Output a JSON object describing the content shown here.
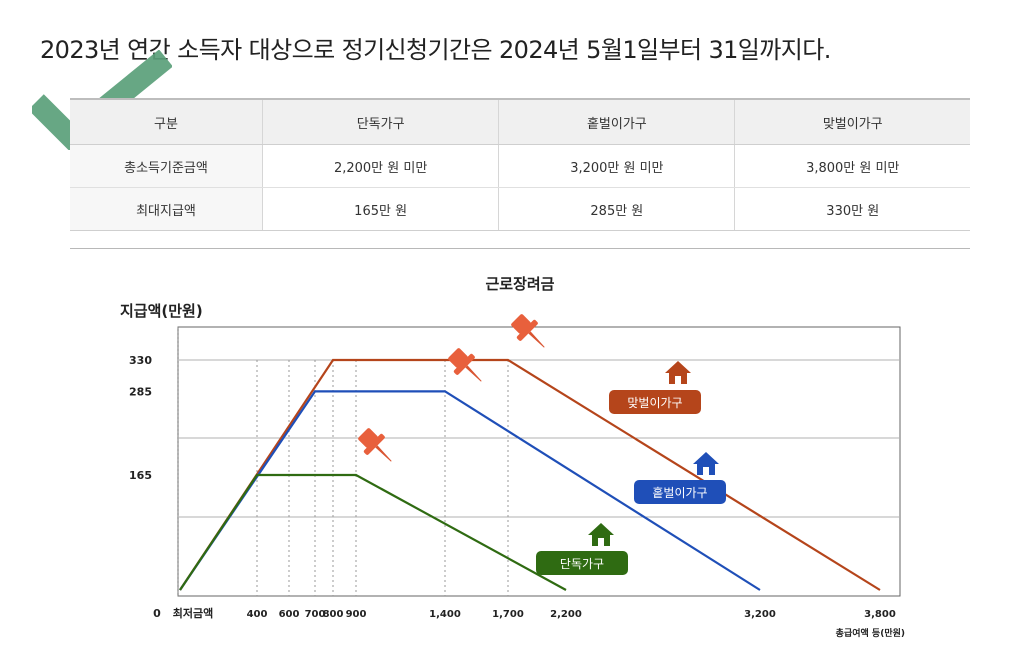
{
  "headline": "2023년 연간 소득자 대상으로 정기신청기간은 2024년 5월1일부터 31일까지다.",
  "table": {
    "headers": [
      "구분",
      "단독가구",
      "홑벌이가구",
      "맞벌이가구"
    ],
    "rows": [
      [
        "총소득기준금액",
        "2,200만 원 미만",
        "3,200만 원 미만",
        "3,800만 원 미만"
      ],
      [
        "최대지급액",
        "165만 원",
        "285만 원",
        "330만 원"
      ]
    ]
  },
  "chart_data": {
    "type": "line",
    "title": "근로장려금",
    "ylabel": "지급액(만원)",
    "xlabel": "총급여액 등(만원)",
    "x_origin_label": "0",
    "x_min_label": "최저금액",
    "x_ticks": [
      "400",
      "600",
      "700",
      "800",
      "900",
      "1,400",
      "1,700",
      "2,200",
      "3,200",
      "3,800"
    ],
    "y_ticks": [
      "330",
      "285",
      "165"
    ],
    "ylim": [
      0,
      380
    ],
    "grid": true,
    "series": [
      {
        "name": "맞벌이가구",
        "color": "#b5451b",
        "x": [
          0,
          800,
          1700,
          3800
        ],
        "y": [
          0,
          330,
          330,
          0
        ]
      },
      {
        "name": "홑벌이가구",
        "color": "#1f4fb8",
        "x": [
          0,
          700,
          1400,
          3200
        ],
        "y": [
          0,
          285,
          285,
          0
        ]
      },
      {
        "name": "단독가구",
        "color": "#2f6b12",
        "x": [
          0,
          400,
          900,
          2200
        ],
        "y": [
          0,
          165,
          165,
          0
        ]
      }
    ],
    "annotations": [
      "pushpin-icon",
      "house-icon",
      "checkmark-icon"
    ]
  }
}
